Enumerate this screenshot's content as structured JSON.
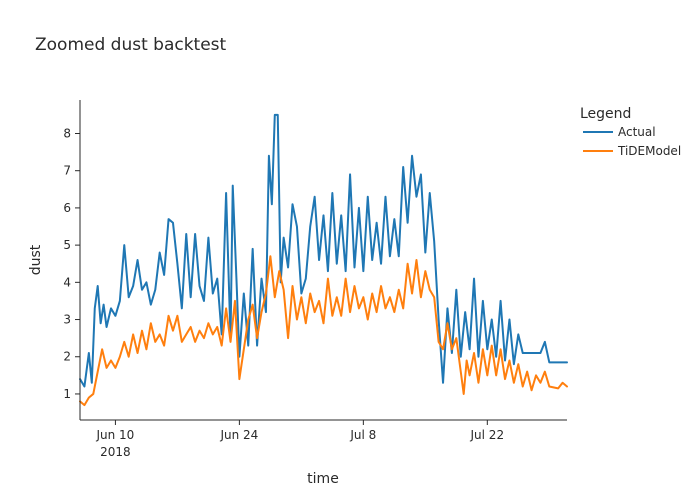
{
  "chart_data": {
    "type": "line",
    "title": "Zoomed dust backtest",
    "xlabel": "time",
    "ylabel": "dust",
    "x_range": [
      "2018-06-06",
      "2018-07-31"
    ],
    "ylim": [
      0.3,
      8.9
    ],
    "y_ticks": [
      1,
      2,
      3,
      4,
      5,
      6,
      7,
      8
    ],
    "x_ticks": [
      {
        "date": "2018-06-10",
        "label": "Jun 10",
        "sublabel": "2018"
      },
      {
        "date": "2018-06-24",
        "label": "Jun 24",
        "sublabel": ""
      },
      {
        "date": "2018-07-08",
        "label": "Jul 8",
        "sublabel": ""
      },
      {
        "date": "2018-07-22",
        "label": "Jul 22",
        "sublabel": ""
      }
    ],
    "grid": false,
    "legend": {
      "title": "Legend",
      "placement": "top-right"
    },
    "series": [
      {
        "name": "Actual",
        "color": "#1f77b4",
        "points": [
          [
            "2018-06-06 00:00",
            1.4
          ],
          [
            "2018-06-06 12:00",
            1.2
          ],
          [
            "2018-06-07 00:00",
            2.1
          ],
          [
            "2018-06-07 08:00",
            1.3
          ],
          [
            "2018-06-07 16:00",
            3.3
          ],
          [
            "2018-06-08 00:00",
            3.9
          ],
          [
            "2018-06-08 08:00",
            2.9
          ],
          [
            "2018-06-08 16:00",
            3.4
          ],
          [
            "2018-06-09 00:00",
            2.8
          ],
          [
            "2018-06-09 12:00",
            3.3
          ],
          [
            "2018-06-10 00:00",
            3.1
          ],
          [
            "2018-06-10 12:00",
            3.5
          ],
          [
            "2018-06-11 00:00",
            5.0
          ],
          [
            "2018-06-11 12:00",
            3.6
          ],
          [
            "2018-06-12 00:00",
            3.9
          ],
          [
            "2018-06-12 12:00",
            4.6
          ],
          [
            "2018-06-13 00:00",
            3.8
          ],
          [
            "2018-06-13 12:00",
            4.0
          ],
          [
            "2018-06-14 00:00",
            3.4
          ],
          [
            "2018-06-14 12:00",
            3.8
          ],
          [
            "2018-06-15 00:00",
            4.8
          ],
          [
            "2018-06-15 12:00",
            4.2
          ],
          [
            "2018-06-16 00:00",
            5.7
          ],
          [
            "2018-06-16 12:00",
            5.6
          ],
          [
            "2018-06-17 00:00",
            4.5
          ],
          [
            "2018-06-17 12:00",
            3.3
          ],
          [
            "2018-06-18 00:00",
            5.3
          ],
          [
            "2018-06-18 12:00",
            3.6
          ],
          [
            "2018-06-19 00:00",
            5.3
          ],
          [
            "2018-06-19 12:00",
            3.9
          ],
          [
            "2018-06-20 00:00",
            3.5
          ],
          [
            "2018-06-20 12:00",
            5.2
          ],
          [
            "2018-06-21 00:00",
            3.7
          ],
          [
            "2018-06-21 12:00",
            4.1
          ],
          [
            "2018-06-22 00:00",
            2.6
          ],
          [
            "2018-06-22 12:00",
            6.4
          ],
          [
            "2018-06-23 00:00",
            2.5
          ],
          [
            "2018-06-23 06:00",
            6.6
          ],
          [
            "2018-06-23 16:00",
            4.1
          ],
          [
            "2018-06-24 00:00",
            2.0
          ],
          [
            "2018-06-24 12:00",
            3.7
          ],
          [
            "2018-06-25 00:00",
            2.3
          ],
          [
            "2018-06-25 12:00",
            4.9
          ],
          [
            "2018-06-26 00:00",
            2.3
          ],
          [
            "2018-06-26 12:00",
            4.1
          ],
          [
            "2018-06-27 00:00",
            3.2
          ],
          [
            "2018-06-27 08:00",
            7.4
          ],
          [
            "2018-06-27 16:00",
            6.1
          ],
          [
            "2018-06-28 00:00",
            8.5
          ],
          [
            "2018-06-28 08:00",
            8.5
          ],
          [
            "2018-06-28 16:00",
            4.0
          ],
          [
            "2018-06-29 00:00",
            5.2
          ],
          [
            "2018-06-29 12:00",
            4.4
          ],
          [
            "2018-06-30 00:00",
            6.1
          ],
          [
            "2018-06-30 12:00",
            5.5
          ],
          [
            "2018-07-01 00:00",
            3.7
          ],
          [
            "2018-07-01 12:00",
            4.1
          ],
          [
            "2018-07-02 00:00",
            5.5
          ],
          [
            "2018-07-02 12:00",
            6.3
          ],
          [
            "2018-07-03 00:00",
            4.6
          ],
          [
            "2018-07-03 12:00",
            5.8
          ],
          [
            "2018-07-04 00:00",
            4.3
          ],
          [
            "2018-07-04 12:00",
            6.4
          ],
          [
            "2018-07-05 00:00",
            4.5
          ],
          [
            "2018-07-05 12:00",
            5.8
          ],
          [
            "2018-07-06 00:00",
            4.3
          ],
          [
            "2018-07-06 12:00",
            6.9
          ],
          [
            "2018-07-07 00:00",
            4.4
          ],
          [
            "2018-07-07 12:00",
            6.0
          ],
          [
            "2018-07-08 00:00",
            4.3
          ],
          [
            "2018-07-08 12:00",
            6.3
          ],
          [
            "2018-07-09 00:00",
            4.6
          ],
          [
            "2018-07-09 12:00",
            5.6
          ],
          [
            "2018-07-10 00:00",
            4.5
          ],
          [
            "2018-07-10 12:00",
            6.3
          ],
          [
            "2018-07-11 00:00",
            4.7
          ],
          [
            "2018-07-11 12:00",
            5.7
          ],
          [
            "2018-07-12 00:00",
            4.7
          ],
          [
            "2018-07-12 12:00",
            7.1
          ],
          [
            "2018-07-13 00:00",
            5.6
          ],
          [
            "2018-07-13 12:00",
            7.4
          ],
          [
            "2018-07-14 00:00",
            6.3
          ],
          [
            "2018-07-14 12:00",
            6.9
          ],
          [
            "2018-07-15 00:00",
            4.8
          ],
          [
            "2018-07-15 12:00",
            6.4
          ],
          [
            "2018-07-16 00:00",
            5.1
          ],
          [
            "2018-07-16 12:00",
            3.0
          ],
          [
            "2018-07-17 00:00",
            1.3
          ],
          [
            "2018-07-17 12:00",
            3.3
          ],
          [
            "2018-07-18 00:00",
            2.1
          ],
          [
            "2018-07-18 12:00",
            3.8
          ],
          [
            "2018-07-19 00:00",
            2.0
          ],
          [
            "2018-07-19 12:00",
            3.2
          ],
          [
            "2018-07-20 00:00",
            2.2
          ],
          [
            "2018-07-20 12:00",
            4.1
          ],
          [
            "2018-07-21 00:00",
            2.0
          ],
          [
            "2018-07-21 12:00",
            3.5
          ],
          [
            "2018-07-22 00:00",
            2.2
          ],
          [
            "2018-07-22 12:00",
            3.0
          ],
          [
            "2018-07-23 00:00",
            2.0
          ],
          [
            "2018-07-23 12:00",
            3.5
          ],
          [
            "2018-07-24 00:00",
            1.9
          ],
          [
            "2018-07-24 12:00",
            3.0
          ],
          [
            "2018-07-25 00:00",
            1.8
          ],
          [
            "2018-07-25 12:00",
            2.6
          ],
          [
            "2018-07-26 00:00",
            2.1
          ],
          [
            "2018-07-27 00:00",
            2.1
          ],
          [
            "2018-07-28 00:00",
            2.1
          ],
          [
            "2018-07-28 12:00",
            2.4
          ],
          [
            "2018-07-29 00:00",
            1.85
          ],
          [
            "2018-07-31 00:00",
            1.85
          ]
        ]
      },
      {
        "name": "TiDEModel",
        "color": "#ff7f0e",
        "points": [
          [
            "2018-06-06 00:00",
            0.8
          ],
          [
            "2018-06-06 12:00",
            0.7
          ],
          [
            "2018-06-07 00:00",
            0.9
          ],
          [
            "2018-06-07 12:00",
            1.0
          ],
          [
            "2018-06-08 00:00",
            1.6
          ],
          [
            "2018-06-08 12:00",
            2.2
          ],
          [
            "2018-06-09 00:00",
            1.7
          ],
          [
            "2018-06-09 12:00",
            1.9
          ],
          [
            "2018-06-10 00:00",
            1.7
          ],
          [
            "2018-06-10 12:00",
            2.0
          ],
          [
            "2018-06-11 00:00",
            2.4
          ],
          [
            "2018-06-11 12:00",
            2.0
          ],
          [
            "2018-06-12 00:00",
            2.6
          ],
          [
            "2018-06-12 12:00",
            2.1
          ],
          [
            "2018-06-13 00:00",
            2.7
          ],
          [
            "2018-06-13 12:00",
            2.2
          ],
          [
            "2018-06-14 00:00",
            2.9
          ],
          [
            "2018-06-14 12:00",
            2.4
          ],
          [
            "2018-06-15 00:00",
            2.6
          ],
          [
            "2018-06-15 12:00",
            2.3
          ],
          [
            "2018-06-16 00:00",
            3.1
          ],
          [
            "2018-06-16 12:00",
            2.7
          ],
          [
            "2018-06-17 00:00",
            3.1
          ],
          [
            "2018-06-17 12:00",
            2.4
          ],
          [
            "2018-06-18 00:00",
            2.6
          ],
          [
            "2018-06-18 12:00",
            2.8
          ],
          [
            "2018-06-19 00:00",
            2.4
          ],
          [
            "2018-06-19 12:00",
            2.7
          ],
          [
            "2018-06-20 00:00",
            2.5
          ],
          [
            "2018-06-20 12:00",
            2.9
          ],
          [
            "2018-06-21 00:00",
            2.6
          ],
          [
            "2018-06-21 12:00",
            2.8
          ],
          [
            "2018-06-22 00:00",
            2.3
          ],
          [
            "2018-06-22 12:00",
            3.3
          ],
          [
            "2018-06-23 00:00",
            2.4
          ],
          [
            "2018-06-23 12:00",
            3.5
          ],
          [
            "2018-06-24 00:00",
            1.4
          ],
          [
            "2018-06-24 12:00",
            2.2
          ],
          [
            "2018-06-25 00:00",
            3.0
          ],
          [
            "2018-06-25 12:00",
            3.4
          ],
          [
            "2018-06-26 00:00",
            2.5
          ],
          [
            "2018-06-26 12:00",
            3.2
          ],
          [
            "2018-06-27 00:00",
            3.7
          ],
          [
            "2018-06-27 12:00",
            4.7
          ],
          [
            "2018-06-28 00:00",
            3.6
          ],
          [
            "2018-06-28 12:00",
            4.3
          ],
          [
            "2018-06-29 00:00",
            3.8
          ],
          [
            "2018-06-29 12:00",
            2.5
          ],
          [
            "2018-06-30 00:00",
            3.9
          ],
          [
            "2018-06-30 12:00",
            3.0
          ],
          [
            "2018-07-01 00:00",
            3.6
          ],
          [
            "2018-07-01 12:00",
            2.9
          ],
          [
            "2018-07-02 00:00",
            3.7
          ],
          [
            "2018-07-02 12:00",
            3.2
          ],
          [
            "2018-07-03 00:00",
            3.5
          ],
          [
            "2018-07-03 12:00",
            2.9
          ],
          [
            "2018-07-04 00:00",
            4.1
          ],
          [
            "2018-07-04 12:00",
            3.1
          ],
          [
            "2018-07-05 00:00",
            3.6
          ],
          [
            "2018-07-05 12:00",
            3.1
          ],
          [
            "2018-07-06 00:00",
            4.1
          ],
          [
            "2018-07-06 12:00",
            3.2
          ],
          [
            "2018-07-07 00:00",
            3.9
          ],
          [
            "2018-07-07 12:00",
            3.3
          ],
          [
            "2018-07-08 00:00",
            3.6
          ],
          [
            "2018-07-08 12:00",
            3.0
          ],
          [
            "2018-07-09 00:00",
            3.7
          ],
          [
            "2018-07-09 12:00",
            3.2
          ],
          [
            "2018-07-10 00:00",
            3.9
          ],
          [
            "2018-07-10 12:00",
            3.3
          ],
          [
            "2018-07-11 00:00",
            3.6
          ],
          [
            "2018-07-11 12:00",
            3.2
          ],
          [
            "2018-07-12 00:00",
            3.8
          ],
          [
            "2018-07-12 12:00",
            3.3
          ],
          [
            "2018-07-13 00:00",
            4.5
          ],
          [
            "2018-07-13 12:00",
            3.7
          ],
          [
            "2018-07-14 00:00",
            4.6
          ],
          [
            "2018-07-14 12:00",
            3.6
          ],
          [
            "2018-07-15 00:00",
            4.3
          ],
          [
            "2018-07-15 12:00",
            3.8
          ],
          [
            "2018-07-16 00:00",
            3.6
          ],
          [
            "2018-07-16 12:00",
            2.4
          ],
          [
            "2018-07-17 00:00",
            2.2
          ],
          [
            "2018-07-17 12:00",
            2.9
          ],
          [
            "2018-07-18 00:00",
            2.2
          ],
          [
            "2018-07-18 12:00",
            2.5
          ],
          [
            "2018-07-19 00:00",
            1.6
          ],
          [
            "2018-07-19 08:00",
            1.0
          ],
          [
            "2018-07-19 16:00",
            1.9
          ],
          [
            "2018-07-20 00:00",
            1.5
          ],
          [
            "2018-07-20 12:00",
            2.1
          ],
          [
            "2018-07-21 00:00",
            1.3
          ],
          [
            "2018-07-21 12:00",
            2.2
          ],
          [
            "2018-07-22 00:00",
            1.5
          ],
          [
            "2018-07-22 12:00",
            2.3
          ],
          [
            "2018-07-23 00:00",
            1.5
          ],
          [
            "2018-07-23 12:00",
            2.2
          ],
          [
            "2018-07-24 00:00",
            1.4
          ],
          [
            "2018-07-24 12:00",
            1.9
          ],
          [
            "2018-07-25 00:00",
            1.3
          ],
          [
            "2018-07-25 12:00",
            1.8
          ],
          [
            "2018-07-26 00:00",
            1.2
          ],
          [
            "2018-07-26 12:00",
            1.6
          ],
          [
            "2018-07-27 00:00",
            1.1
          ],
          [
            "2018-07-27 12:00",
            1.5
          ],
          [
            "2018-07-28 00:00",
            1.3
          ],
          [
            "2018-07-28 12:00",
            1.6
          ],
          [
            "2018-07-29 00:00",
            1.2
          ],
          [
            "2018-07-30 00:00",
            1.15
          ],
          [
            "2018-07-30 12:00",
            1.3
          ],
          [
            "2018-07-31 00:00",
            1.2
          ]
        ]
      }
    ]
  }
}
